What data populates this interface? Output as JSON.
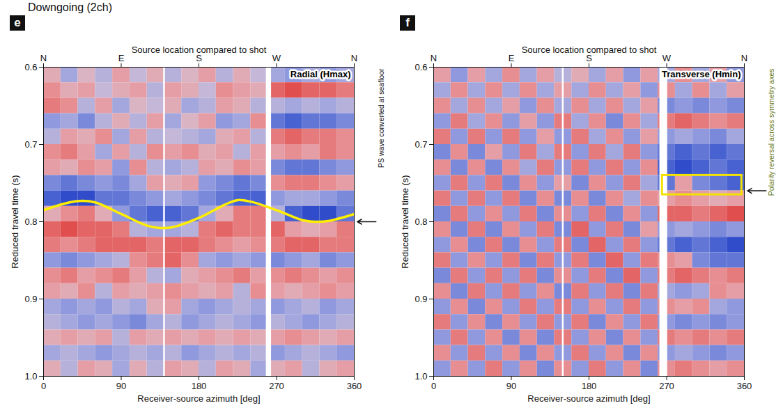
{
  "title": "Downgoing (2ch)",
  "chart_data": [
    {
      "type": "heatmap",
      "panel": "e",
      "label": "Radial (Hmax)",
      "xlabel": "Receiver-source azimuth [deg]",
      "xlabel_top": "Source location compared to shot",
      "xlim": [
        0,
        360
      ],
      "xticks": [
        0,
        90,
        180,
        270,
        360
      ],
      "xticks_top": [
        {
          "value": 0,
          "label": "N"
        },
        {
          "value": 90,
          "label": "E"
        },
        {
          "value": 180,
          "label": "S"
        },
        {
          "value": 270,
          "label": "W"
        },
        {
          "value": 360,
          "label": "N"
        }
      ],
      "ylabel": "Reduced travel time (s)",
      "ylim": [
        0.6,
        1.0
      ],
      "yticks": [
        0.6,
        0.7,
        0.8,
        0.9,
        {
          "value": 1,
          "label": "1.0"
        }
      ],
      "cells": {
        "x": [
          0,
          20,
          40,
          60,
          80,
          100,
          120,
          140,
          160,
          180,
          200,
          220,
          240,
          260,
          280,
          300,
          320,
          340,
          360
        ],
        "y": [
          0.6,
          0.62,
          0.64,
          0.66,
          0.68,
          0.7,
          0.72,
          0.74,
          0.76,
          0.78,
          0.8,
          0.82,
          0.84,
          0.86,
          0.88,
          0.9,
          0.92,
          0.94,
          0.96,
          0.98,
          1.0
        ],
        "clim": [
          -9,
          9
        ],
        "values": [
          [
            2,
            -3,
            1,
            -2,
            3,
            -1,
            2,
            -2,
            1,
            3,
            -2,
            2,
            -1,
            -3,
            -4,
            -3,
            -4,
            -3
          ],
          [
            4,
            2,
            3,
            -1,
            2,
            3,
            -2,
            3,
            2,
            -1,
            4,
            3,
            2,
            6,
            7,
            6,
            6,
            5
          ],
          [
            5,
            4,
            -2,
            3,
            -3,
            1,
            -1,
            2,
            -3,
            -2,
            3,
            2,
            -2,
            -2,
            -3,
            -2,
            -3,
            -2
          ],
          [
            -4,
            -3,
            -5,
            -2,
            2,
            -2,
            3,
            -3,
            1,
            3,
            -4,
            -3,
            4,
            -6,
            -7,
            -6,
            -6,
            -5
          ],
          [
            -2,
            3,
            2,
            4,
            -3,
            3,
            -2,
            -1,
            -2,
            -3,
            2,
            3,
            -2,
            5,
            6,
            5,
            5,
            4
          ],
          [
            4,
            5,
            3,
            -3,
            3,
            -2,
            4,
            3,
            4,
            2,
            3,
            -2,
            3,
            3,
            4,
            3,
            5,
            4
          ],
          [
            3,
            2,
            4,
            3,
            -4,
            4,
            -2,
            -3,
            -2,
            3,
            2,
            4,
            3,
            -5,
            -6,
            -6,
            -5,
            -4
          ],
          [
            -5,
            -6,
            -5,
            -4,
            -5,
            -3,
            3,
            2,
            3,
            -4,
            -5,
            -6,
            -5,
            4,
            5,
            5,
            4,
            3
          ],
          [
            -7,
            -8,
            -8,
            -6,
            -6,
            -5,
            -4,
            -3,
            -4,
            -5,
            -6,
            -7,
            -7,
            -4,
            -3,
            -3,
            -4,
            -5
          ],
          [
            2,
            4,
            5,
            2,
            -4,
            -6,
            -7,
            -7,
            -6,
            -3,
            2,
            5,
            5,
            -2,
            -7,
            -8,
            -8,
            -6
          ],
          [
            6,
            7,
            6,
            6,
            5,
            -2,
            -3,
            -3,
            -2,
            5,
            6,
            5,
            5,
            6,
            3,
            2,
            3,
            5
          ],
          [
            5,
            4,
            5,
            6,
            6,
            6,
            5,
            6,
            6,
            5,
            4,
            3,
            4,
            5,
            6,
            6,
            5,
            5
          ],
          [
            -4,
            -5,
            -4,
            -3,
            -2,
            4,
            5,
            6,
            4,
            -3,
            -4,
            -3,
            -4,
            -5,
            -4,
            -3,
            -5,
            -4
          ],
          [
            4,
            5,
            3,
            4,
            5,
            3,
            -2,
            -3,
            2,
            3,
            4,
            5,
            3,
            4,
            5,
            4,
            3,
            4
          ],
          [
            3,
            2,
            4,
            -2,
            3,
            2,
            3,
            4,
            3,
            2,
            3,
            -2,
            4,
            3,
            2,
            3,
            4,
            3
          ],
          [
            -3,
            -4,
            -3,
            -4,
            -2,
            -3,
            2,
            3,
            -3,
            -4,
            -3,
            -2,
            -3,
            -4,
            -3,
            -2,
            -4,
            -3
          ],
          [
            -2,
            -3,
            -4,
            -3,
            -4,
            -5,
            -3,
            -2,
            -4,
            -3,
            -2,
            -3,
            -4,
            -2,
            -3,
            -4,
            -3,
            -2
          ],
          [
            2,
            3,
            2,
            3,
            -2,
            3,
            2,
            3,
            2,
            3,
            2,
            3,
            2,
            3,
            4,
            3,
            2,
            3
          ],
          [
            -3,
            -2,
            -3,
            -4,
            -3,
            -2,
            -3,
            -2,
            -4,
            -3,
            -2,
            -3,
            -2,
            -4,
            -3,
            -2,
            -3,
            -4
          ],
          [
            2,
            -2,
            3,
            2,
            -3,
            2,
            -2,
            3,
            2,
            -2,
            3,
            2,
            -3,
            2,
            3,
            -2,
            2,
            3
          ]
        ]
      },
      "gaps": [
        [
          139,
          141
        ],
        [
          258,
          264
        ]
      ],
      "curve": {
        "color": "#ffee00",
        "x": [
          0,
          30,
          45,
          60,
          90,
          120,
          135,
          150,
          180,
          210,
          225,
          240,
          270,
          300,
          315,
          330,
          360
        ],
        "y": [
          0.785,
          0.775,
          0.773,
          0.775,
          0.79,
          0.805,
          0.808,
          0.807,
          0.795,
          0.778,
          0.772,
          0.774,
          0.785,
          0.798,
          0.8,
          0.799,
          0.79
        ]
      },
      "annotation": {
        "text": "PS wave converted at seafloor",
        "y": 0.8,
        "color": "#111111"
      }
    },
    {
      "type": "heatmap",
      "panel": "f",
      "label": "Transverse (Hmin)",
      "xlabel": "Receiver-source azimuth [deg]",
      "xlabel_top": "Source location compared to shot",
      "xlim": [
        0,
        360
      ],
      "xticks": [
        0,
        90,
        180,
        270,
        360
      ],
      "xticks_top": [
        {
          "value": 0,
          "label": "N"
        },
        {
          "value": 90,
          "label": "E"
        },
        {
          "value": 180,
          "label": "S"
        },
        {
          "value": 270,
          "label": "W"
        },
        {
          "value": 360,
          "label": "N"
        }
      ],
      "ylabel": "Reduced travel time (s)",
      "ylim": [
        0.6,
        1.0
      ],
      "yticks": [
        0.6,
        0.7,
        0.8,
        0.9,
        {
          "value": 1,
          "label": "1.0"
        }
      ],
      "cells": {
        "x": [
          0,
          20,
          40,
          60,
          80,
          100,
          120,
          140,
          160,
          180,
          200,
          220,
          240,
          260,
          280,
          300,
          320,
          340,
          360
        ],
        "y": [
          0.6,
          0.62,
          0.64,
          0.66,
          0.68,
          0.7,
          0.72,
          0.74,
          0.76,
          0.78,
          0.8,
          0.82,
          0.84,
          0.86,
          0.88,
          0.9,
          0.92,
          0.94,
          0.96,
          0.98,
          1.0
        ],
        "clim": [
          -9,
          9
        ],
        "values": [
          [
            3,
            -4,
            3,
            -3,
            4,
            -3,
            3,
            -2,
            2,
            -3,
            3,
            -4,
            3,
            -3,
            4,
            -3,
            3,
            -4
          ],
          [
            -3,
            4,
            -3,
            4,
            -3,
            4,
            -3,
            3,
            -3,
            4,
            -3,
            3,
            -4,
            4,
            -3,
            4,
            -3,
            3
          ],
          [
            4,
            -3,
            4,
            -3,
            3,
            -4,
            4,
            -3,
            4,
            -3,
            4,
            -3,
            3,
            -5,
            -4,
            -5,
            -4,
            -5
          ],
          [
            -4,
            5,
            -3,
            4,
            -4,
            3,
            -4,
            5,
            -3,
            4,
            -5,
            4,
            -3,
            5,
            6,
            5,
            4,
            5
          ],
          [
            5,
            -4,
            5,
            -4,
            5,
            -4,
            3,
            -4,
            5,
            -3,
            4,
            -4,
            3,
            -4,
            -3,
            -4,
            -5,
            -3
          ],
          [
            -5,
            4,
            -5,
            3,
            -4,
            5,
            -3,
            5,
            -4,
            5,
            -3,
            5,
            -4,
            -6,
            -7,
            -6,
            -7,
            -6
          ],
          [
            4,
            -5,
            4,
            -5,
            4,
            -3,
            5,
            -4,
            5,
            -4,
            5,
            -4,
            4,
            -7,
            -8,
            -7,
            -6,
            -7
          ],
          [
            -4,
            5,
            -4,
            5,
            -5,
            4,
            -4,
            3,
            -5,
            4,
            -4,
            5,
            -3,
            -6,
            3,
            -5,
            -6,
            -7
          ],
          [
            5,
            -4,
            5,
            -4,
            5,
            -5,
            4,
            -5,
            4,
            -5,
            4,
            -3,
            4,
            3,
            4,
            3,
            2,
            3
          ],
          [
            -5,
            5,
            -4,
            4,
            -4,
            5,
            -5,
            4,
            -4,
            5,
            -5,
            4,
            -4,
            6,
            6,
            5,
            6,
            7
          ],
          [
            4,
            -5,
            5,
            -5,
            4,
            -4,
            5,
            -5,
            6,
            -4,
            5,
            -5,
            3,
            -4,
            -3,
            -4,
            -5,
            -4
          ],
          [
            -4,
            4,
            -5,
            5,
            -5,
            4,
            -4,
            5,
            -5,
            6,
            -4,
            5,
            -4,
            -6,
            -7,
            -6,
            -7,
            -8
          ],
          [
            5,
            -4,
            4,
            -4,
            5,
            -5,
            5,
            -4,
            5,
            -5,
            6,
            -4,
            5,
            4,
            3,
            -5,
            -6,
            -6
          ],
          [
            -5,
            5,
            -4,
            5,
            -4,
            5,
            -5,
            4,
            -4,
            5,
            -5,
            6,
            -4,
            5,
            6,
            5,
            4,
            5
          ],
          [
            4,
            -5,
            5,
            -4,
            5,
            -4,
            4,
            -5,
            5,
            -4,
            5,
            -5,
            5,
            -3,
            -4,
            -3,
            4,
            3
          ],
          [
            -4,
            4,
            -5,
            4,
            -4,
            5,
            -4,
            5,
            -4,
            4,
            -4,
            5,
            -4,
            4,
            3,
            4,
            -3,
            -4
          ],
          [
            5,
            -4,
            4,
            -5,
            4,
            -4,
            5,
            -4,
            5,
            -5,
            4,
            -4,
            5,
            -4,
            -5,
            -4,
            -5,
            -4
          ],
          [
            -4,
            5,
            -4,
            4,
            -5,
            4,
            -5,
            5,
            -4,
            4,
            -5,
            4,
            -4,
            5,
            4,
            5,
            4,
            5
          ],
          [
            4,
            -4,
            5,
            -4,
            4,
            -5,
            4,
            -4,
            5,
            -4,
            4,
            -5,
            4,
            -4,
            -3,
            -4,
            -5,
            -4
          ],
          [
            -4,
            4,
            -4,
            5,
            -4,
            4,
            -5,
            4,
            -4,
            5,
            -4,
            4,
            -5,
            4,
            5,
            4,
            3,
            4
          ]
        ]
      },
      "gaps": [
        [
          149,
          151
        ],
        [
          262,
          271
        ]
      ],
      "box": {
        "color": "#f2e200",
        "x": [
          265,
          357
        ],
        "y": [
          0.74,
          0.765
        ]
      },
      "annotation": {
        "text": "Polarity reversal across symmetry axes",
        "y": 0.76,
        "color": "#6b7b1c"
      }
    }
  ]
}
